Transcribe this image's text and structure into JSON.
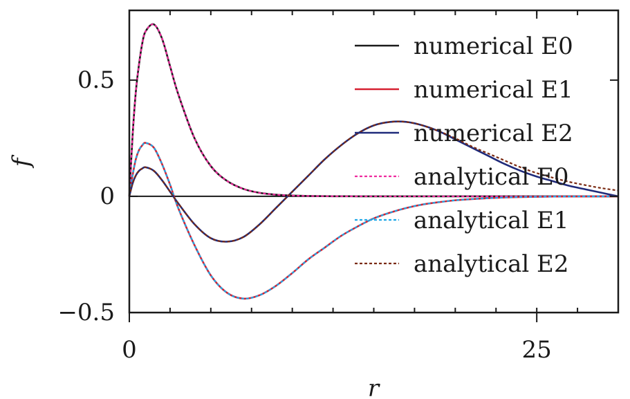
{
  "chart_data": {
    "type": "line",
    "xlabel": "r",
    "ylabel": "f",
    "xlim": [
      0,
      30
    ],
    "ylim": [
      -0.5,
      0.8
    ],
    "xticks": [
      0,
      25
    ],
    "xtick_labels": [
      "0",
      "25"
    ],
    "yticks": [
      -0.5,
      0,
      0.5
    ],
    "ytick_labels": [
      "−0.5",
      "0",
      "0.5"
    ],
    "x_minor_step": 2.5,
    "legend_position": "top-right",
    "grid": false,
    "x": [
      0,
      0.2,
      0.4,
      0.6,
      0.8,
      1,
      1.5,
      2,
      2.5,
      3,
      4,
      5,
      6,
      7,
      8,
      9,
      10,
      11,
      12,
      13,
      14,
      15,
      16,
      17,
      18,
      19,
      20,
      21,
      22,
      23,
      24,
      25,
      26,
      27,
      28,
      29,
      30
    ],
    "series": [
      {
        "name": "numerical E0",
        "color": "#1a1a1a",
        "style": "solid",
        "values": [
          0,
          0.26,
          0.45,
          0.57,
          0.66,
          0.71,
          0.74,
          0.68,
          0.56,
          0.44,
          0.25,
          0.13,
          0.066,
          0.032,
          0.015,
          0.0071,
          0.0032,
          0.0015,
          0.0007,
          0.0003,
          0.0001,
          0,
          0,
          0,
          0,
          0,
          0,
          0,
          0,
          0,
          0,
          0,
          0,
          0,
          0,
          0,
          0
        ]
      },
      {
        "name": "numerical E1",
        "color": "#d62031",
        "style": "solid",
        "values": [
          0,
          0.09,
          0.16,
          0.2,
          0.22,
          0.23,
          0.21,
          0.14,
          0.05,
          -0.05,
          -0.21,
          -0.34,
          -0.415,
          -0.44,
          -0.425,
          -0.385,
          -0.33,
          -0.27,
          -0.22,
          -0.17,
          -0.13,
          -0.095,
          -0.07,
          -0.05,
          -0.035,
          -0.025,
          -0.017,
          -0.012,
          -0.008,
          -0.005,
          -0.003,
          -0.002,
          -0.001,
          -0.0006,
          -0.0003,
          -0.0001,
          0
        ]
      },
      {
        "name": "numerical E2",
        "color": "#1f2a7a",
        "style": "solid",
        "values": [
          0,
          0.055,
          0.09,
          0.11,
          0.12,
          0.125,
          0.11,
          0.07,
          0.02,
          -0.03,
          -0.12,
          -0.18,
          -0.195,
          -0.175,
          -0.12,
          -0.05,
          0.02,
          0.09,
          0.16,
          0.22,
          0.27,
          0.305,
          0.32,
          0.32,
          0.305,
          0.28,
          0.245,
          0.21,
          0.175,
          0.14,
          0.11,
          0.085,
          0.065,
          0.045,
          0.03,
          0.015,
          0
        ]
      },
      {
        "name": "analytical E0",
        "color": "#ee2a9e",
        "style": "dashed",
        "values": [
          0,
          0.26,
          0.45,
          0.57,
          0.66,
          0.71,
          0.74,
          0.68,
          0.56,
          0.44,
          0.25,
          0.13,
          0.066,
          0.032,
          0.015,
          0.0071,
          0.0032,
          0.0015,
          0.0007,
          0.0003,
          0.0001,
          0,
          0,
          0,
          0,
          0,
          0,
          0,
          0,
          0,
          0,
          0,
          0,
          0,
          0,
          0,
          0
        ]
      },
      {
        "name": "analytical E1",
        "color": "#1fa8e8",
        "style": "dashed",
        "values": [
          0,
          0.09,
          0.16,
          0.2,
          0.22,
          0.23,
          0.21,
          0.14,
          0.05,
          -0.05,
          -0.21,
          -0.34,
          -0.415,
          -0.44,
          -0.425,
          -0.385,
          -0.33,
          -0.27,
          -0.22,
          -0.17,
          -0.13,
          -0.095,
          -0.07,
          -0.05,
          -0.035,
          -0.025,
          -0.017,
          -0.012,
          -0.008,
          -0.005,
          -0.003,
          -0.002,
          -0.001,
          -0.0006,
          -0.0003,
          -0.0001,
          0
        ]
      },
      {
        "name": "analytical E2",
        "color": "#7a2a12",
        "style": "dashed",
        "values": [
          0,
          0.055,
          0.09,
          0.11,
          0.12,
          0.125,
          0.11,
          0.07,
          0.02,
          -0.03,
          -0.12,
          -0.18,
          -0.195,
          -0.175,
          -0.12,
          -0.05,
          0.02,
          0.09,
          0.16,
          0.22,
          0.27,
          0.305,
          0.32,
          0.32,
          0.305,
          0.28,
          0.25,
          0.215,
          0.185,
          0.155,
          0.125,
          0.1,
          0.08,
          0.062,
          0.048,
          0.035,
          0.025
        ]
      }
    ]
  }
}
